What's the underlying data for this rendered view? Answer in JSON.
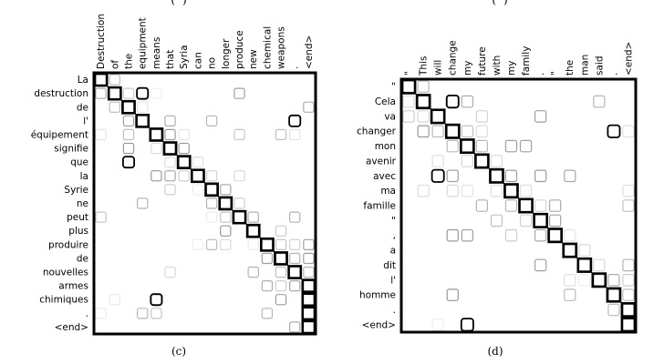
{
  "figure": {
    "top_fragments": [
      "(",
      ")"
    ]
  },
  "panels": [
    {
      "id": "c",
      "caption": "(c)",
      "chart_data": {
        "type": "heatmap",
        "x_labels": [
          "Destruction",
          "of",
          "the",
          "equipment",
          "means",
          "that",
          "Syria",
          "can",
          "no",
          "longer",
          "produce",
          "new",
          "chemical",
          "weapons",
          ".",
          "<end>"
        ],
        "y_labels": [
          "La",
          "destruction",
          "de",
          "l'",
          "équipement",
          "signifie",
          "que",
          "la",
          "Syrie",
          "ne",
          "peut",
          "plus",
          "produire",
          "de",
          "nouvelles",
          "armes",
          "chimiques",
          ".",
          "<end>"
        ],
        "alignment_path": [
          [
            0,
            0
          ],
          [
            1,
            1
          ],
          [
            2,
            2
          ],
          [
            3,
            3
          ],
          [
            4,
            4
          ],
          [
            5,
            5
          ],
          [
            6,
            6
          ],
          [
            7,
            7
          ],
          [
            8,
            8
          ],
          [
            9,
            9
          ],
          [
            10,
            10
          ],
          [
            11,
            11
          ],
          [
            12,
            12
          ],
          [
            13,
            13
          ],
          [
            14,
            14
          ],
          [
            15,
            15
          ],
          [
            16,
            16
          ],
          [
            17,
            17
          ],
          [
            18,
            18
          ]
        ]
      }
    },
    {
      "id": "d",
      "caption": "(d)",
      "chart_data": {
        "type": "heatmap",
        "x_labels": [
          "\"",
          "This",
          "will",
          "change",
          "my",
          "future",
          "with",
          "my",
          "family",
          ".",
          "\"",
          "the",
          "man",
          "said",
          ".",
          "<end>"
        ],
        "y_labels": [
          "\"",
          "Cela",
          "va",
          "changer",
          "mon",
          "avenir",
          "avec",
          "ma",
          "famille",
          "\"",
          ",",
          "a",
          "dit",
          "l'",
          "homme",
          ".",
          "<end>"
        ],
        "alignment_path": [
          [
            0,
            0
          ],
          [
            1,
            1
          ],
          [
            2,
            2
          ],
          [
            3,
            3
          ],
          [
            4,
            4
          ],
          [
            5,
            5
          ],
          [
            6,
            6
          ],
          [
            7,
            7
          ],
          [
            8,
            8
          ],
          [
            9,
            9
          ],
          [
            10,
            10
          ],
          [
            11,
            11
          ],
          [
            12,
            12
          ],
          [
            13,
            13
          ],
          [
            14,
            14
          ],
          [
            15,
            15
          ],
          [
            16,
            16
          ]
        ]
      }
    }
  ]
}
